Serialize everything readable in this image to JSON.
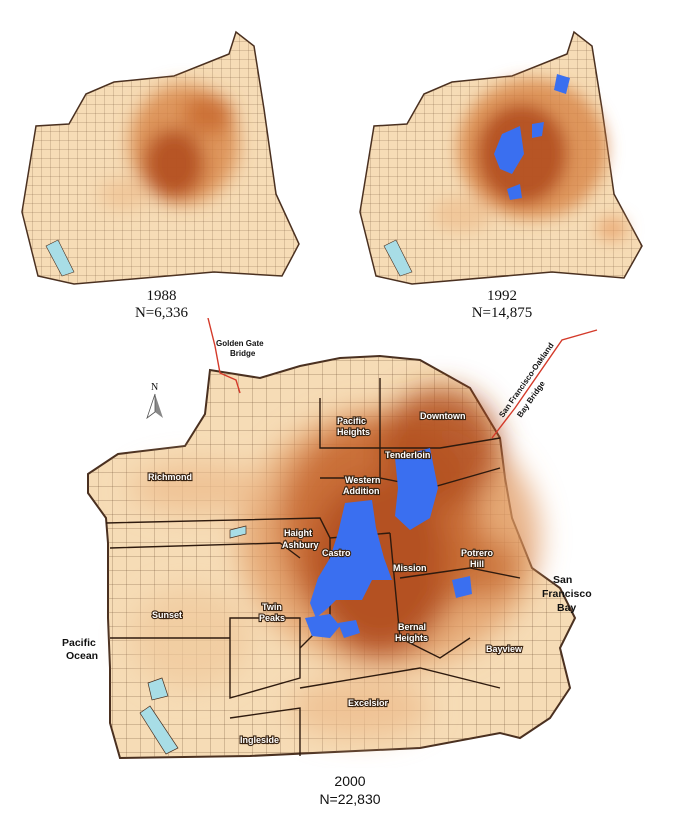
{
  "maps": [
    {
      "id": "1988",
      "year": "1988",
      "n": "N=6,336"
    },
    {
      "id": "1992",
      "year": "1992",
      "n": "N=14,875"
    },
    {
      "id": "2000",
      "year": "2000",
      "n": "N=22,830"
    }
  ],
  "neighborhoods": {
    "pacific_heights_1": "Pacific",
    "pacific_heights_2": "Heights",
    "downtown": "Downtown",
    "tenderloin": "Tenderloin",
    "richmond": "Richmond",
    "western_addition_1": "Western",
    "western_addition_2": "Addition",
    "haight_ashbury_1": "Haight",
    "haight_ashbury_2": "Ashbury",
    "castro": "Castro",
    "mission": "Mission",
    "potrero_hill_1": "Potrero",
    "potrero_hill_2": "Hill",
    "sunset": "Sunset",
    "twin_peaks_1": "Twin",
    "twin_peaks_2": "Peaks",
    "bernal_heights_1": "Bernal",
    "bernal_heights_2": "Heights",
    "bayview": "Bayview",
    "excelsior": "Excelsior",
    "ingleside": "Ingleside"
  },
  "water_labels": {
    "pacific_ocean_1": "Pacific",
    "pacific_ocean_2": "Ocean",
    "sf_bay_1": "San",
    "sf_bay_2": "Francisco",
    "sf_bay_3": "Bay"
  },
  "bridge_labels": {
    "golden_gate_1": "Golden Gate",
    "golden_gate_2": "Bridge",
    "bay_bridge_1": "San Francisco-Oakland",
    "bay_bridge_2": "Bay Bridge"
  },
  "compass": "N",
  "colors": {
    "land": "#f6dcb6",
    "low": "#eebd8d",
    "mid": "#d47e45",
    "high": "#b24f20",
    "highest": "#3a6ff0",
    "bridge": "#d43a2a",
    "water": "#a8dde6"
  }
}
